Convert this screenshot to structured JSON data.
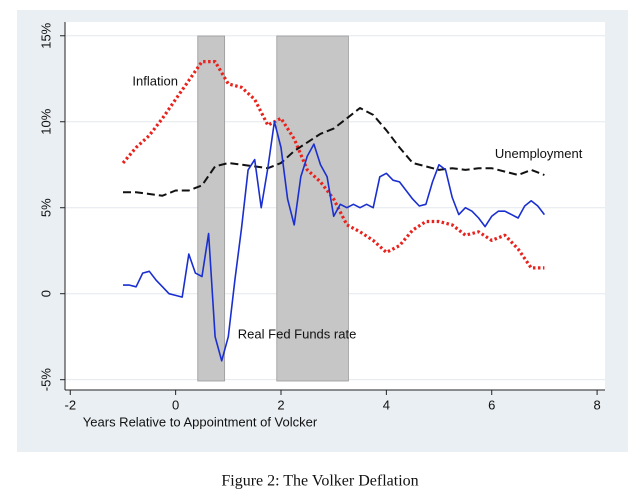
{
  "chart_data": {
    "type": "line",
    "caption": "Figure 2: The Volker Deflation",
    "x_label": "Years Relative to Appointment of Volcker",
    "xlim": [
      -2.1,
      8.15
    ],
    "xticks": [
      -2,
      0,
      2,
      4,
      6,
      8
    ],
    "ylim": [
      -5.6,
      15.8
    ],
    "yticks": [
      {
        "value": -5,
        "label": "-5%"
      },
      0,
      {
        "value": 5,
        "label": "5%"
      },
      {
        "value": 10,
        "label": "10%"
      },
      {
        "value": 15,
        "label": "15%"
      }
    ],
    "grid": true,
    "shaded_regions": [
      [
        0.42,
        0.93
      ],
      [
        1.92,
        3.28
      ]
    ],
    "series": [
      {
        "name": "Inflation",
        "color": "#e8231d",
        "style": "dotted",
        "x": [
          -1,
          -0.75,
          -0.5,
          -0.25,
          0,
          0.25,
          0.5,
          0.75,
          1,
          1.25,
          1.5,
          1.75,
          2,
          2.25,
          2.5,
          2.75,
          3,
          3.25,
          3.5,
          3.75,
          4,
          4.25,
          4.5,
          4.75,
          5,
          5.25,
          5.5,
          5.75,
          6,
          6.25,
          6.5,
          6.75,
          7
        ],
        "values": [
          7.6,
          8.5,
          9.2,
          10.2,
          11.3,
          12.4,
          13.5,
          13.5,
          12.2,
          12.0,
          11.3,
          9.8,
          10.2,
          9.0,
          7.2,
          6.5,
          5.5,
          4.0,
          3.6,
          3.1,
          2.4,
          2.8,
          3.7,
          4.2,
          4.2,
          4.0,
          3.4,
          3.6,
          3.1,
          3.4,
          2.6,
          1.5,
          1.5
        ]
      },
      {
        "name": "Unemployment",
        "color": "#111111",
        "style": "dashed",
        "x": [
          -1,
          -0.75,
          -0.5,
          -0.25,
          0,
          0.25,
          0.5,
          0.75,
          1,
          1.25,
          1.5,
          1.75,
          2,
          2.25,
          2.5,
          2.75,
          3,
          3.25,
          3.5,
          3.75,
          4,
          4.25,
          4.5,
          4.75,
          5,
          5.25,
          5.5,
          5.75,
          6,
          6.25,
          6.5,
          6.75,
          7
        ],
        "values": [
          5.9,
          5.9,
          5.8,
          5.7,
          6.0,
          6.0,
          6.3,
          7.4,
          7.6,
          7.5,
          7.4,
          7.3,
          7.6,
          8.3,
          8.8,
          9.3,
          9.6,
          10.2,
          10.8,
          10.4,
          9.5,
          8.5,
          7.6,
          7.4,
          7.2,
          7.3,
          7.2,
          7.3,
          7.3,
          7.1,
          6.9,
          7.2,
          6.9
        ]
      },
      {
        "name": "Real Fed Funds rate",
        "color": "#1a2fd0",
        "style": "solid",
        "x": [
          -1,
          -0.875,
          -0.75,
          -0.625,
          -0.5,
          -0.375,
          -0.25,
          -0.125,
          0,
          0.125,
          0.25,
          0.375,
          0.5,
          0.625,
          0.75,
          0.875,
          1,
          1.125,
          1.25,
          1.375,
          1.5,
          1.625,
          1.75,
          1.875,
          2,
          2.125,
          2.25,
          2.375,
          2.5,
          2.625,
          2.75,
          2.875,
          3,
          3.125,
          3.25,
          3.375,
          3.5,
          3.625,
          3.75,
          3.875,
          4,
          4.125,
          4.25,
          4.375,
          4.5,
          4.625,
          4.75,
          4.875,
          5,
          5.125,
          5.25,
          5.375,
          5.5,
          5.625,
          5.75,
          5.875,
          6,
          6.125,
          6.25,
          6.375,
          6.5,
          6.625,
          6.75,
          6.875,
          7
        ],
        "values": [
          0.5,
          0.5,
          0.4,
          1.2,
          1.3,
          0.8,
          0.4,
          0.0,
          -0.1,
          -0.2,
          2.3,
          1.2,
          1.0,
          3.5,
          -2.5,
          -3.9,
          -2.5,
          0.8,
          3.8,
          7.2,
          7.8,
          5.0,
          7.3,
          10.0,
          8.5,
          5.5,
          4.0,
          6.8,
          8.0,
          8.7,
          7.5,
          6.8,
          4.5,
          5.2,
          5.0,
          5.2,
          5.0,
          5.2,
          5.0,
          6.8,
          7.0,
          6.6,
          6.5,
          6.0,
          5.5,
          5.1,
          5.2,
          6.5,
          7.5,
          7.2,
          5.6,
          4.6,
          5.0,
          4.8,
          4.4,
          3.9,
          4.5,
          4.8,
          4.8,
          4.6,
          4.4,
          5.1,
          5.4,
          5.1,
          4.6
        ]
      }
    ]
  }
}
